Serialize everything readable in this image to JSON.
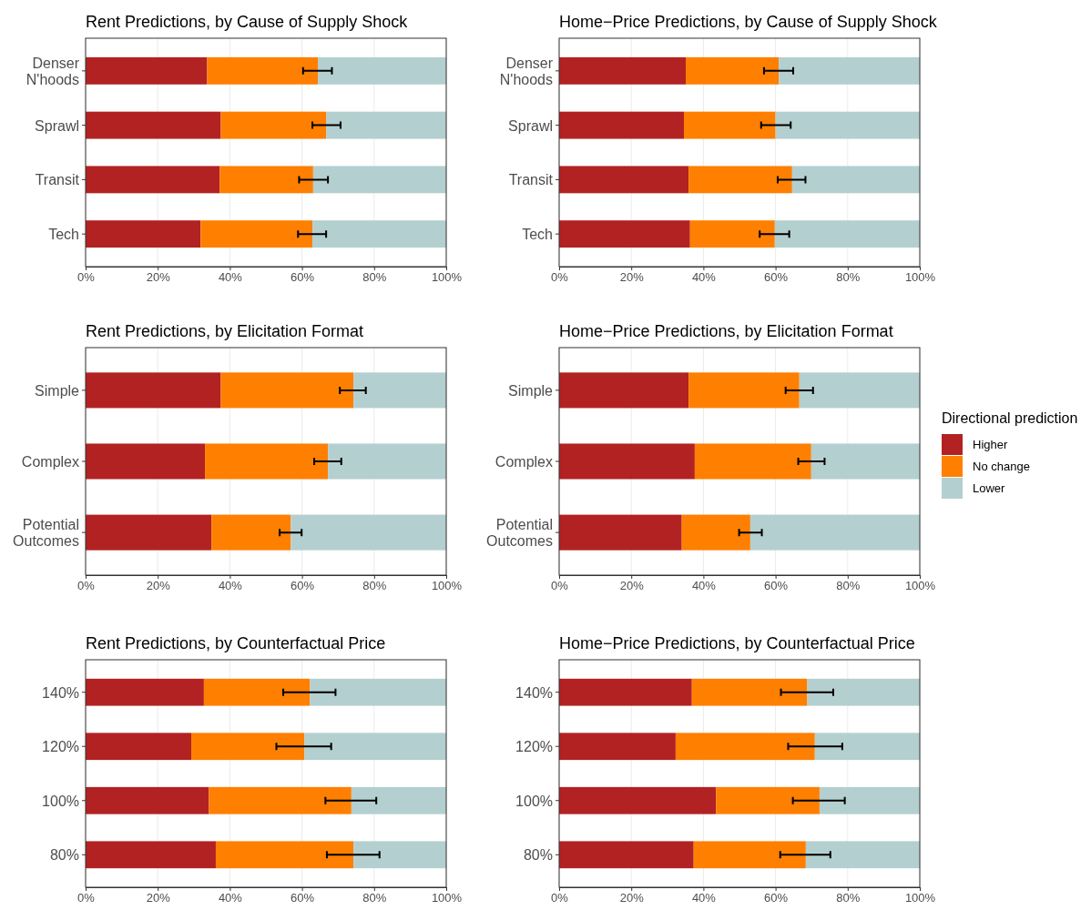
{
  "chart_data": [
    {
      "type": "bar",
      "orientation": "horizontal",
      "stacked": true,
      "title": "Rent Predictions, by Cause of Supply Shock",
      "categories": [
        "Denser\nN'hoods",
        "Sprawl",
        "Transit",
        "Tech"
      ],
      "xlim": [
        0,
        100
      ],
      "xticks": [
        {
          "value": 0,
          "label": "0%"
        },
        {
          "value": 20,
          "label": "20%"
        },
        {
          "value": 40,
          "label": "40%"
        },
        {
          "value": 60,
          "label": "60%"
        },
        {
          "value": 80,
          "label": "80%"
        },
        {
          "value": 100,
          "label": "100%"
        }
      ],
      "grid": "x",
      "legend": "right",
      "legend_title": "Directional prediction",
      "series": [
        {
          "name": "Higher",
          "color": "#b22222",
          "values": [
            33.7,
            37.5,
            37.2,
            31.9
          ]
        },
        {
          "name": "No change",
          "color": "#ff7f00",
          "values": [
            30.7,
            29.2,
            25.9,
            31.0
          ],
          "errors": [
            [
              60.3,
              68.3
            ],
            [
              62.9,
              70.7
            ],
            [
              59.2,
              67.2
            ],
            [
              58.9,
              66.7
            ]
          ]
        },
        {
          "name": "Lower",
          "color": "#b4cfcf",
          "values": [
            35.6,
            33.3,
            36.9,
            37.1
          ]
        }
      ]
    },
    {
      "type": "bar",
      "orientation": "horizontal",
      "stacked": true,
      "title": "Home−Price Predictions, by Cause of Supply Shock",
      "categories": [
        "Denser\nN'hoods",
        "Sprawl",
        "Transit",
        "Tech"
      ],
      "xlim": [
        0,
        100
      ],
      "xticks": [
        {
          "value": 0,
          "label": "0%"
        },
        {
          "value": 20,
          "label": "20%"
        },
        {
          "value": 40,
          "label": "40%"
        },
        {
          "value": 60,
          "label": "60%"
        },
        {
          "value": 80,
          "label": "80%"
        },
        {
          "value": 100,
          "label": "100%"
        }
      ],
      "grid": "x",
      "legend": "right",
      "series": [
        {
          "name": "Higher",
          "color": "#b22222",
          "values": [
            35.1,
            34.6,
            35.9,
            36.3
          ]
        },
        {
          "name": "No change",
          "color": "#ff7f00",
          "values": [
            25.8,
            25.4,
            28.7,
            23.5
          ],
          "errors": [
            [
              56.8,
              64.9
            ],
            [
              56.0,
              64.2
            ],
            [
              60.6,
              68.3
            ],
            [
              55.6,
              63.8
            ]
          ]
        },
        {
          "name": "Lower",
          "color": "#b4cfcf",
          "values": [
            39.1,
            40.0,
            35.4,
            40.2
          ]
        }
      ]
    },
    {
      "type": "bar",
      "orientation": "horizontal",
      "stacked": true,
      "title": "Rent Predictions, by Elicitation Format",
      "categories": [
        "Simple",
        "Complex",
        "Potential\nOutcomes"
      ],
      "xlim": [
        0,
        100
      ],
      "xticks": [
        {
          "value": 0,
          "label": "0%"
        },
        {
          "value": 20,
          "label": "20%"
        },
        {
          "value": 40,
          "label": "40%"
        },
        {
          "value": 60,
          "label": "60%"
        },
        {
          "value": 80,
          "label": "80%"
        },
        {
          "value": 100,
          "label": "100%"
        }
      ],
      "grid": "x",
      "legend": "right",
      "series": [
        {
          "name": "Higher",
          "color": "#b22222",
          "values": [
            37.5,
            33.1,
            34.9
          ]
        },
        {
          "name": "No change",
          "color": "#ff7f00",
          "values": [
            36.8,
            34.1,
            22.0
          ],
          "errors": [
            [
              70.5,
              77.7
            ],
            [
              63.4,
              70.9
            ],
            [
              53.8,
              59.9
            ]
          ]
        },
        {
          "name": "Lower",
          "color": "#b4cfcf",
          "values": [
            25.7,
            32.8,
            43.1
          ]
        }
      ]
    },
    {
      "type": "bar",
      "orientation": "horizontal",
      "stacked": true,
      "title": "Home−Price Predictions, by Elicitation Format",
      "categories": [
        "Simple",
        "Complex",
        "Potential\nOutcomes"
      ],
      "xlim": [
        0,
        100
      ],
      "xticks": [
        {
          "value": 0,
          "label": "0%"
        },
        {
          "value": 20,
          "label": "20%"
        },
        {
          "value": 40,
          "label": "40%"
        },
        {
          "value": 60,
          "label": "60%"
        },
        {
          "value": 80,
          "label": "80%"
        },
        {
          "value": 100,
          "label": "100%"
        }
      ],
      "grid": "x",
      "legend": "right",
      "series": [
        {
          "name": "Higher",
          "color": "#b22222",
          "values": [
            35.9,
            37.6,
            34.0
          ]
        },
        {
          "name": "No change",
          "color": "#ff7f00",
          "values": [
            30.7,
            32.3,
            19.0
          ],
          "errors": [
            [
              62.8,
              70.4
            ],
            [
              66.3,
              73.6
            ],
            [
              49.9,
              56.2
            ]
          ]
        },
        {
          "name": "Lower",
          "color": "#b4cfcf",
          "values": [
            33.4,
            30.1,
            47.0
          ]
        }
      ]
    },
    {
      "type": "bar",
      "orientation": "horizontal",
      "stacked": true,
      "title": "Rent Predictions, by Counterfactual Price",
      "categories": [
        "140%",
        "120%",
        "100%",
        "80%"
      ],
      "xlim": [
        0,
        100
      ],
      "xticks": [
        {
          "value": 0,
          "label": "0%"
        },
        {
          "value": 20,
          "label": "20%"
        },
        {
          "value": 40,
          "label": "40%"
        },
        {
          "value": 60,
          "label": "60%"
        },
        {
          "value": 80,
          "label": "80%"
        },
        {
          "value": 100,
          "label": "100%"
        }
      ],
      "grid": "x",
      "legend": "right",
      "series": [
        {
          "name": "Higher",
          "color": "#b22222",
          "values": [
            32.8,
            29.3,
            34.2,
            36.1
          ]
        },
        {
          "name": "No change",
          "color": "#ff7f00",
          "values": [
            29.4,
            31.4,
            39.5,
            38.2
          ],
          "errors": [
            [
              54.8,
              69.3
            ],
            [
              52.9,
              68.1
            ],
            [
              66.5,
              80.6
            ],
            [
              66.9,
              81.5
            ]
          ]
        },
        {
          "name": "Lower",
          "color": "#b4cfcf",
          "values": [
            37.8,
            39.3,
            26.3,
            25.7
          ]
        }
      ]
    },
    {
      "type": "bar",
      "orientation": "horizontal",
      "stacked": true,
      "title": "Home−Price Predictions, by Counterfactual Price",
      "categories": [
        "140%",
        "120%",
        "100%",
        "80%"
      ],
      "xlim": [
        0,
        100
      ],
      "xticks": [
        {
          "value": 0,
          "label": "0%"
        },
        {
          "value": 20,
          "label": "20%"
        },
        {
          "value": 40,
          "label": "40%"
        },
        {
          "value": 60,
          "label": "60%"
        },
        {
          "value": 80,
          "label": "80%"
        },
        {
          "value": 100,
          "label": "100%"
        }
      ],
      "grid": "x",
      "legend": "right",
      "series": [
        {
          "name": "Higher",
          "color": "#b22222",
          "values": [
            36.8,
            32.3,
            43.5,
            37.3
          ]
        },
        {
          "name": "No change",
          "color": "#ff7f00",
          "values": [
            32.0,
            38.6,
            28.7,
            31.1
          ],
          "errors": [
            [
              61.5,
              76.0
            ],
            [
              63.5,
              78.5
            ],
            [
              64.8,
              79.2
            ],
            [
              61.3,
              75.2
            ]
          ]
        },
        {
          "name": "Lower",
          "color": "#b4cfcf",
          "values": [
            31.2,
            29.1,
            27.8,
            31.6
          ]
        }
      ]
    }
  ]
}
